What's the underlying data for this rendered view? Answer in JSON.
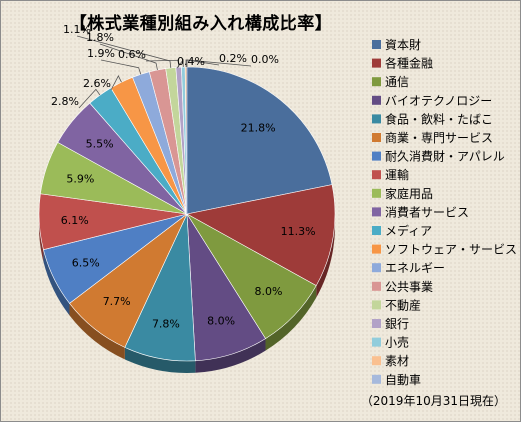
{
  "chart_data": {
    "type": "pie",
    "title": "【株式業種別組み入れ構成比率】",
    "note": "（2019年10月31日現在）",
    "legend_position": "right",
    "slices": [
      {
        "label": "資本財",
        "value": 21.8,
        "display": "21.8%",
        "color": "#4a6e9c"
      },
      {
        "label": "各種金融",
        "value": 11.3,
        "display": "11.3%",
        "color": "#9e3b39"
      },
      {
        "label": "通信",
        "value": 8.0,
        "display": "8.0%",
        "color": "#7f9a3f"
      },
      {
        "label": "バイオテクノロジー",
        "value": 8.0,
        "display": "8.0%",
        "color": "#634c84"
      },
      {
        "label": "食品・飲料・たばこ",
        "value": 7.8,
        "display": "7.8%",
        "color": "#3a8aa2"
      },
      {
        "label": "商業・専門サービス",
        "value": 7.7,
        "display": "7.7%",
        "color": "#d07a31"
      },
      {
        "label": "耐久消費財・アパレル",
        "value": 6.5,
        "display": "6.5%",
        "color": "#4f7fc4"
      },
      {
        "label": "運輸",
        "value": 6.1,
        "display": "6.1%",
        "color": "#c0504d"
      },
      {
        "label": "家庭用品",
        "value": 5.9,
        "display": "5.9%",
        "color": "#9bbb59"
      },
      {
        "label": "消費者サービス",
        "value": 5.5,
        "display": "5.5%",
        "color": "#8064a2"
      },
      {
        "label": "メディア",
        "value": 2.8,
        "display": "2.8%",
        "color": "#4bacc6"
      },
      {
        "label": "ソフトウェア・サービス",
        "value": 2.6,
        "display": "2.6%",
        "color": "#f79646"
      },
      {
        "label": "エネルギー",
        "value": 1.9,
        "display": "1.9%",
        "color": "#8eaadb"
      },
      {
        "label": "公共事業",
        "value": 1.8,
        "display": "1.8%",
        "color": "#d99694"
      },
      {
        "label": "不動産",
        "value": 1.1,
        "display": "1.1%",
        "color": "#c3d69b"
      },
      {
        "label": "銀行",
        "value": 0.6,
        "display": "0.6%",
        "color": "#b2a2c7"
      },
      {
        "label": "小売",
        "value": 0.4,
        "display": "0.4%",
        "color": "#92cddc"
      },
      {
        "label": "素材",
        "value": 0.2,
        "display": "0.2%",
        "color": "#fac090"
      },
      {
        "label": "自動車",
        "value": 0.0,
        "display": "0.0%",
        "color": "#a6b9dc"
      }
    ]
  }
}
